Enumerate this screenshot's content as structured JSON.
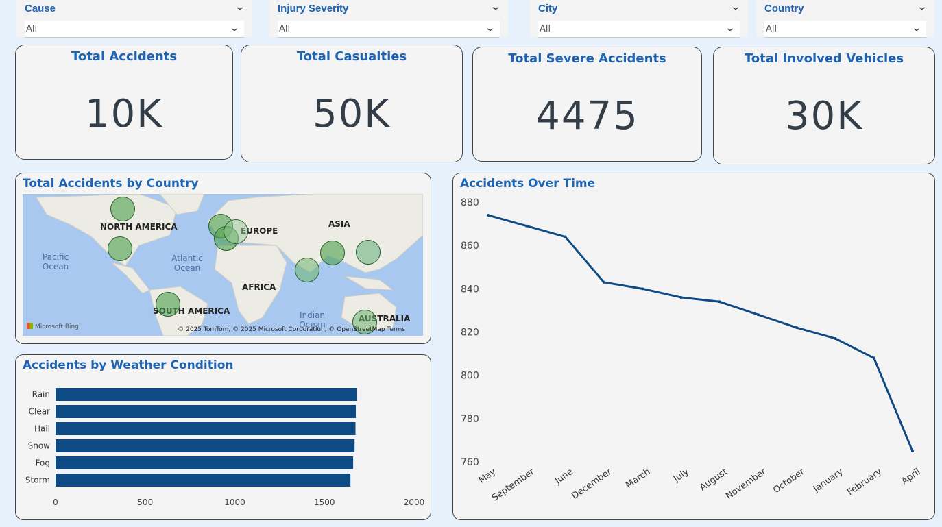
{
  "filters": [
    {
      "label": "Cause",
      "value": "All"
    },
    {
      "label": "Injury Severity",
      "value": "All"
    },
    {
      "label": "City",
      "value": "All"
    },
    {
      "label": "Country",
      "value": "All"
    }
  ],
  "kpis": [
    {
      "title": "Total Accidents",
      "value": "10K"
    },
    {
      "title": "Total Casualties",
      "value": "50K"
    },
    {
      "title": "Total Severe Accidents",
      "value": "4475"
    },
    {
      "title": "Total Involved Vehicles",
      "value": "30K"
    }
  ],
  "map_panel": {
    "title": "Total Accidents by Country",
    "continents": [
      "NORTH AMERICA",
      "EUROPE",
      "ASIA",
      "AFRICA",
      "SOUTH AMERICA",
      "AUSTRALIA"
    ],
    "oceans": [
      "Pacific Ocean",
      "Atlantic Ocean",
      "Indian Ocean"
    ],
    "brand": "Microsoft Bing",
    "copyright": "© 2025 TomTom, © 2025 Microsoft Corporation, © OpenStreetMap  Terms"
  },
  "chart_data": [
    {
      "type": "bar",
      "orientation": "horizontal",
      "title": "Accidents by Weather Condition",
      "categories": [
        "Rain",
        "Clear",
        "Hail",
        "Snow",
        "Fog",
        "Storm"
      ],
      "values": [
        1680,
        1675,
        1673,
        1668,
        1660,
        1645
      ],
      "xlim": [
        0,
        2000
      ],
      "xticks": [
        0,
        500,
        1000,
        1500,
        2000
      ],
      "color": "#0e4a84"
    },
    {
      "type": "line",
      "title": "Accidents Over Time",
      "x": [
        "May",
        "September",
        "June",
        "December",
        "March",
        "July",
        "August",
        "November",
        "October",
        "January",
        "February",
        "April"
      ],
      "values": [
        874,
        869,
        864,
        843,
        840,
        836,
        834,
        828,
        822,
        817,
        808,
        765
      ],
      "ylim": [
        760,
        880
      ],
      "yticks": [
        760,
        780,
        800,
        820,
        840,
        860,
        880
      ],
      "color": "#0e4a84"
    }
  ]
}
